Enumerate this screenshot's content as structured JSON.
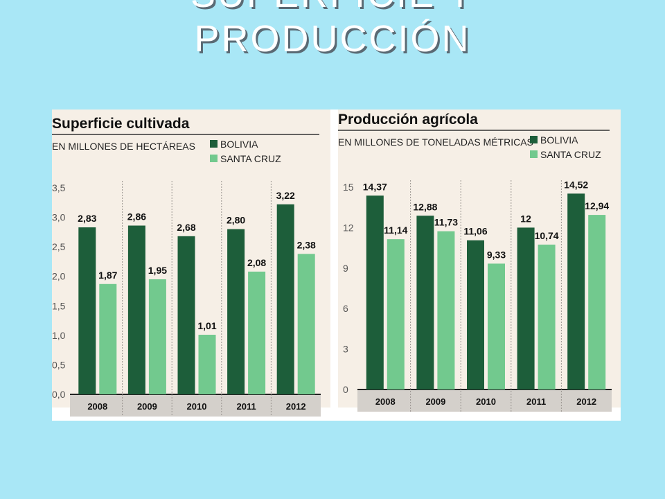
{
  "slide": {
    "title_line1": "SUPERFICIE Y",
    "title_line2": "PRODUCCIÓN"
  },
  "colors": {
    "background": "#a9e7f6",
    "bolivia": "#1d5e3a",
    "santa_cruz": "#72c98e",
    "paper": "#f6efe6"
  },
  "chart_data": [
    {
      "type": "bar",
      "title": "Superficie cultivada",
      "subtitle": "EN MILLONES DE HECTÁREAS",
      "categories": [
        "2008",
        "2009",
        "2010",
        "2011",
        "2012"
      ],
      "series": [
        {
          "name": "BOLIVIA",
          "values": [
            2.83,
            2.86,
            2.68,
            2.8,
            3.22
          ],
          "labels": [
            "2,83",
            "2,86",
            "2,68",
            "2,80",
            "3,22"
          ]
        },
        {
          "name": "SANTA CRUZ",
          "values": [
            1.87,
            1.95,
            1.01,
            2.08,
            2.38
          ],
          "labels": [
            "1,87",
            "1,95",
            "1,01",
            "2,08",
            "2,38"
          ]
        }
      ],
      "ylim": [
        0,
        3.5
      ],
      "yticks": [
        "0,0",
        "0,5",
        "1,0",
        "1,5",
        "2,0",
        "2,5",
        "3,0",
        "3,5"
      ],
      "legend": "top-right",
      "grid": true
    },
    {
      "type": "bar",
      "title": "Producción agrícola",
      "subtitle": "EN MILLONES DE TONELADAS MÉTRICAS",
      "categories": [
        "2008",
        "2009",
        "2010",
        "2011",
        "2012"
      ],
      "series": [
        {
          "name": "BOLIVIA",
          "values": [
            14.37,
            12.88,
            11.06,
            12,
            14.52
          ],
          "labels": [
            "14,37",
            "12,88",
            "11,06",
            "12",
            "14,52"
          ]
        },
        {
          "name": "SANTA CRUZ",
          "values": [
            11.14,
            11.73,
            9.33,
            10.74,
            12.94
          ],
          "labels": [
            "11,14",
            "11,73",
            "9,33",
            "10,74",
            "12,94"
          ]
        }
      ],
      "ylim": [
        0,
        15
      ],
      "yticks": [
        "0",
        "3",
        "6",
        "9",
        "12",
        "15"
      ],
      "legend": "top-right",
      "grid": true
    }
  ]
}
